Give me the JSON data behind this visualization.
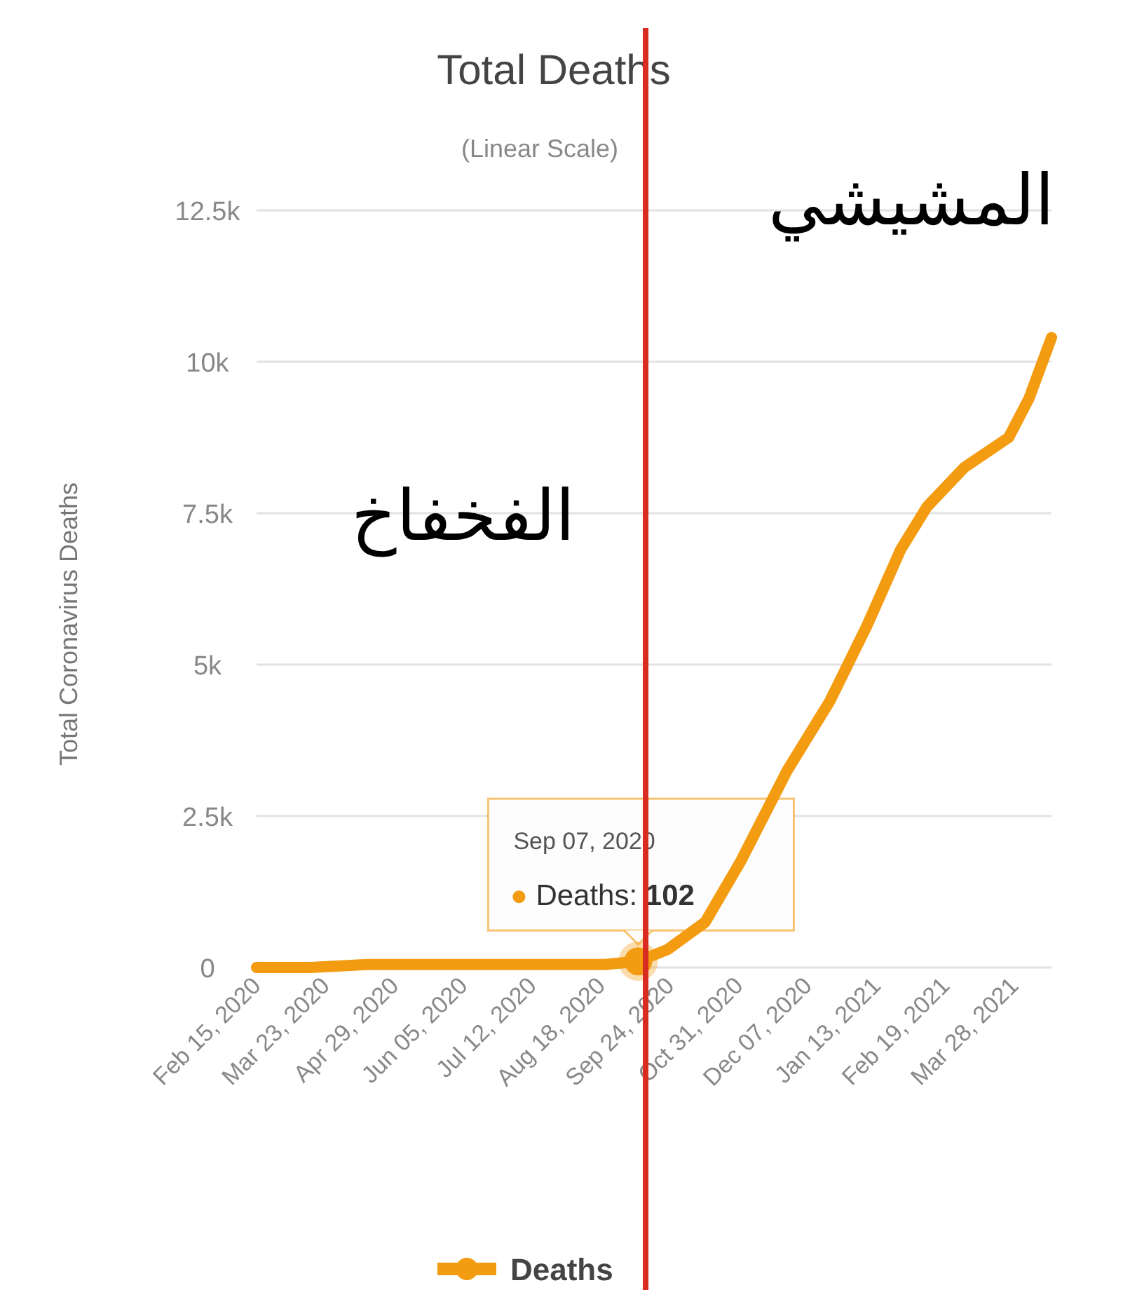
{
  "chart_data": {
    "type": "line",
    "title": "Total Deaths",
    "subtitle": "(Linear Scale)",
    "ylabel": "Total Coronavirus Deaths",
    "x": [
      "2020-02-15",
      "2020-03-15",
      "2020-04-15",
      "2020-05-15",
      "2020-07-01",
      "2020-08-01",
      "2020-08-20",
      "2020-09-07",
      "2020-09-23",
      "2020-10-13",
      "2020-11-01",
      "2020-11-26",
      "2020-12-19",
      "2021-01-08",
      "2021-01-26",
      "2021-02-09",
      "2021-03-01",
      "2021-03-25",
      "2021-04-05",
      "2021-04-17"
    ],
    "series": [
      {
        "name": "Deaths",
        "color": "#f39c12",
        "values": [
          0,
          0,
          50,
          50,
          50,
          50,
          50,
          102,
          300,
          750,
          1750,
          3250,
          4400,
          5650,
          6900,
          7600,
          8250,
          8750,
          9400,
          10400
        ]
      }
    ],
    "xlim": [
      "2020-02-15",
      "2021-04-17"
    ],
    "xticks": [
      {
        "value": "2020-02-15",
        "label": "Feb 15, 2020"
      },
      {
        "value": "2020-03-23",
        "label": "Mar 23, 2020"
      },
      {
        "value": "2020-04-29",
        "label": "Apr 29, 2020"
      },
      {
        "value": "2020-06-05",
        "label": "Jun 05, 2020"
      },
      {
        "value": "2020-07-12",
        "label": "Jul 12, 2020"
      },
      {
        "value": "2020-08-18",
        "label": "Aug 18, 2020"
      },
      {
        "value": "2020-09-24",
        "label": "Sep 24, 2020"
      },
      {
        "value": "2020-10-31",
        "label": "Oct 31, 2020"
      },
      {
        "value": "2020-12-07",
        "label": "Dec 07, 2020"
      },
      {
        "value": "2021-01-13",
        "label": "Jan 13, 2021"
      },
      {
        "value": "2021-02-19",
        "label": "Feb 19, 2021"
      },
      {
        "value": "2021-03-28",
        "label": "Mar 28, 2021"
      }
    ],
    "ylim": [
      0,
      12500
    ],
    "yticks": [
      0,
      {
        "value": 2500,
        "label": "2.5k"
      },
      {
        "value": 5000,
        "label": "5k"
      },
      {
        "value": 7500,
        "label": "7.5k"
      },
      {
        "value": 10000,
        "label": "10k"
      },
      {
        "value": 12500,
        "label": "12.5k"
      }
    ],
    "grid": "y",
    "legend": "bottom",
    "ref_lines": [
      {
        "axis": "x",
        "value": "2020-09-11",
        "color": "#d92b1f"
      }
    ],
    "annotations": [
      "Sep 07, 2020",
      {
        "text": "Deaths: **102**",
        "x": "2020-09-07",
        "y": 102
      },
      "الفخفاخ",
      "المشيشي"
    ]
  }
}
